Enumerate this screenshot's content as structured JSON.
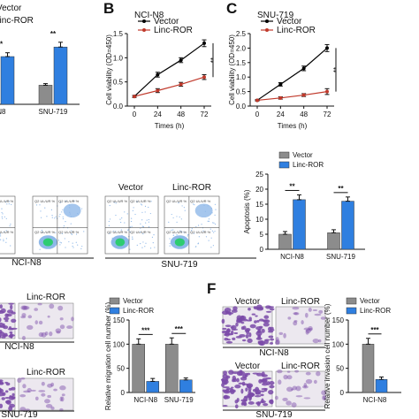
{
  "panels": {
    "b": "B",
    "c": "C",
    "f": "F"
  },
  "colors": {
    "vector_line": "#000000",
    "linc_line": "#c0392b",
    "vector_bar": "#8c8c8c",
    "linc_bar": "#2f7fe0",
    "flow_bg": "#8fb8e8",
    "stain": "#7a4aa8"
  },
  "flow": {
    "labels": [
      "Vector",
      "Linc-ROR"
    ],
    "groups": [
      "NCI-N8",
      "SNU-719"
    ],
    "quad_text": "Q2 UL/UR %"
  },
  "micrographs": {
    "labels": [
      "Vector",
      "Linc-ROR"
    ],
    "rows": [
      "NCI-N8",
      "SNU-719"
    ]
  },
  "chart_data": [
    {
      "id": "a-partial",
      "type": "bar",
      "categories": [
        "NCI-N8",
        "SNU-719"
      ],
      "display_categories": [
        "-N8",
        "SNU-719"
      ],
      "series": [
        {
          "name": "Vector",
          "values": [
            null,
            0.6
          ],
          "errors": [
            null,
            0.05
          ]
        },
        {
          "name": "Linc-ROR",
          "values": [
            1.5,
            1.8
          ],
          "errors": [
            0.12,
            0.15
          ]
        }
      ],
      "legend": [
        "Vector",
        "Linc-ROR"
      ],
      "display_legend": [
        "Vector",
        "Linc-ROR"
      ],
      "significance": [
        "**",
        "**"
      ],
      "ylim": [
        0,
        2.5
      ]
    },
    {
      "id": "b",
      "type": "line",
      "title": "NCI-N8",
      "xlabel": "Times (h)",
      "ylabel": "Cell viability (OD=450)",
      "x": [
        0,
        24,
        48,
        72
      ],
      "series": [
        {
          "name": "Vector",
          "values": [
            0.2,
            0.65,
            0.95,
            1.3
          ],
          "errors": [
            0.02,
            0.05,
            0.05,
            0.07
          ]
        },
        {
          "name": "Linc-ROR",
          "values": [
            0.2,
            0.32,
            0.45,
            0.6
          ],
          "errors": [
            0.02,
            0.04,
            0.04,
            0.05
          ]
        }
      ],
      "significance": "**",
      "ylim": [
        0,
        1.5
      ],
      "yticks": [
        "0.0",
        "0.5",
        "1.0",
        "1.5"
      ],
      "legend": "top-left"
    },
    {
      "id": "c",
      "type": "line",
      "title": "SNU-719",
      "xlabel": "Times (h)",
      "ylabel": "Cell viability (OD=450)",
      "x": [
        0,
        24,
        48,
        72
      ],
      "series": [
        {
          "name": "Vector",
          "values": [
            0.2,
            0.75,
            1.3,
            2.0
          ],
          "errors": [
            0.02,
            0.06,
            0.08,
            0.12
          ]
        },
        {
          "name": "Linc-ROR",
          "values": [
            0.2,
            0.28,
            0.38,
            0.5
          ],
          "errors": [
            0.02,
            0.04,
            0.05,
            0.1
          ]
        }
      ],
      "significance": "**",
      "ylim": [
        0,
        2.5
      ],
      "yticks": [
        "0.0",
        "0.5",
        "1.0",
        "1.5",
        "2.0",
        "2.5"
      ],
      "legend": "top-left"
    },
    {
      "id": "d-apoptosis",
      "type": "bar",
      "ylabel": "Apoptosis (%)",
      "categories": [
        "NCI-N8",
        "SNU-719"
      ],
      "series": [
        {
          "name": "Vector",
          "values": [
            5,
            5.5
          ],
          "errors": [
            0.9,
            1.0
          ]
        },
        {
          "name": "Linc-ROR",
          "values": [
            16.5,
            16
          ],
          "errors": [
            1.6,
            1.4
          ]
        }
      ],
      "significance": [
        "**",
        "**"
      ],
      "ylim": [
        0,
        25
      ],
      "yticks": [
        "0",
        "5",
        "10",
        "15",
        "20",
        "25"
      ],
      "legend": "top"
    },
    {
      "id": "e-migration",
      "type": "bar",
      "ylabel": "Relative migration cell number (%)",
      "categories": [
        "NCI-N8",
        "SNU-719"
      ],
      "series": [
        {
          "name": "Vector",
          "values": [
            100,
            100
          ],
          "errors": [
            11,
            13
          ]
        },
        {
          "name": "Linc-ROR",
          "values": [
            23,
            26
          ],
          "errors": [
            6,
            4
          ]
        }
      ],
      "significance": [
        "***",
        "***"
      ],
      "ylim": [
        0,
        150
      ],
      "yticks": [
        "0",
        "50",
        "100",
        "150"
      ],
      "legend": "top-right"
    },
    {
      "id": "f-invasion",
      "type": "bar",
      "ylabel": "Relative invasion cell number (%)",
      "categories": [
        "NCI-N8"
      ],
      "series": [
        {
          "name": "Vector",
          "values": [
            100
          ],
          "errors": [
            12
          ]
        },
        {
          "name": "Linc-ROR",
          "values": [
            27
          ],
          "errors": [
            5
          ]
        }
      ],
      "significance": [
        "***"
      ],
      "ylim": [
        0,
        150
      ],
      "yticks": [
        "0",
        "50",
        "100",
        "150"
      ],
      "legend": "top-right"
    }
  ]
}
